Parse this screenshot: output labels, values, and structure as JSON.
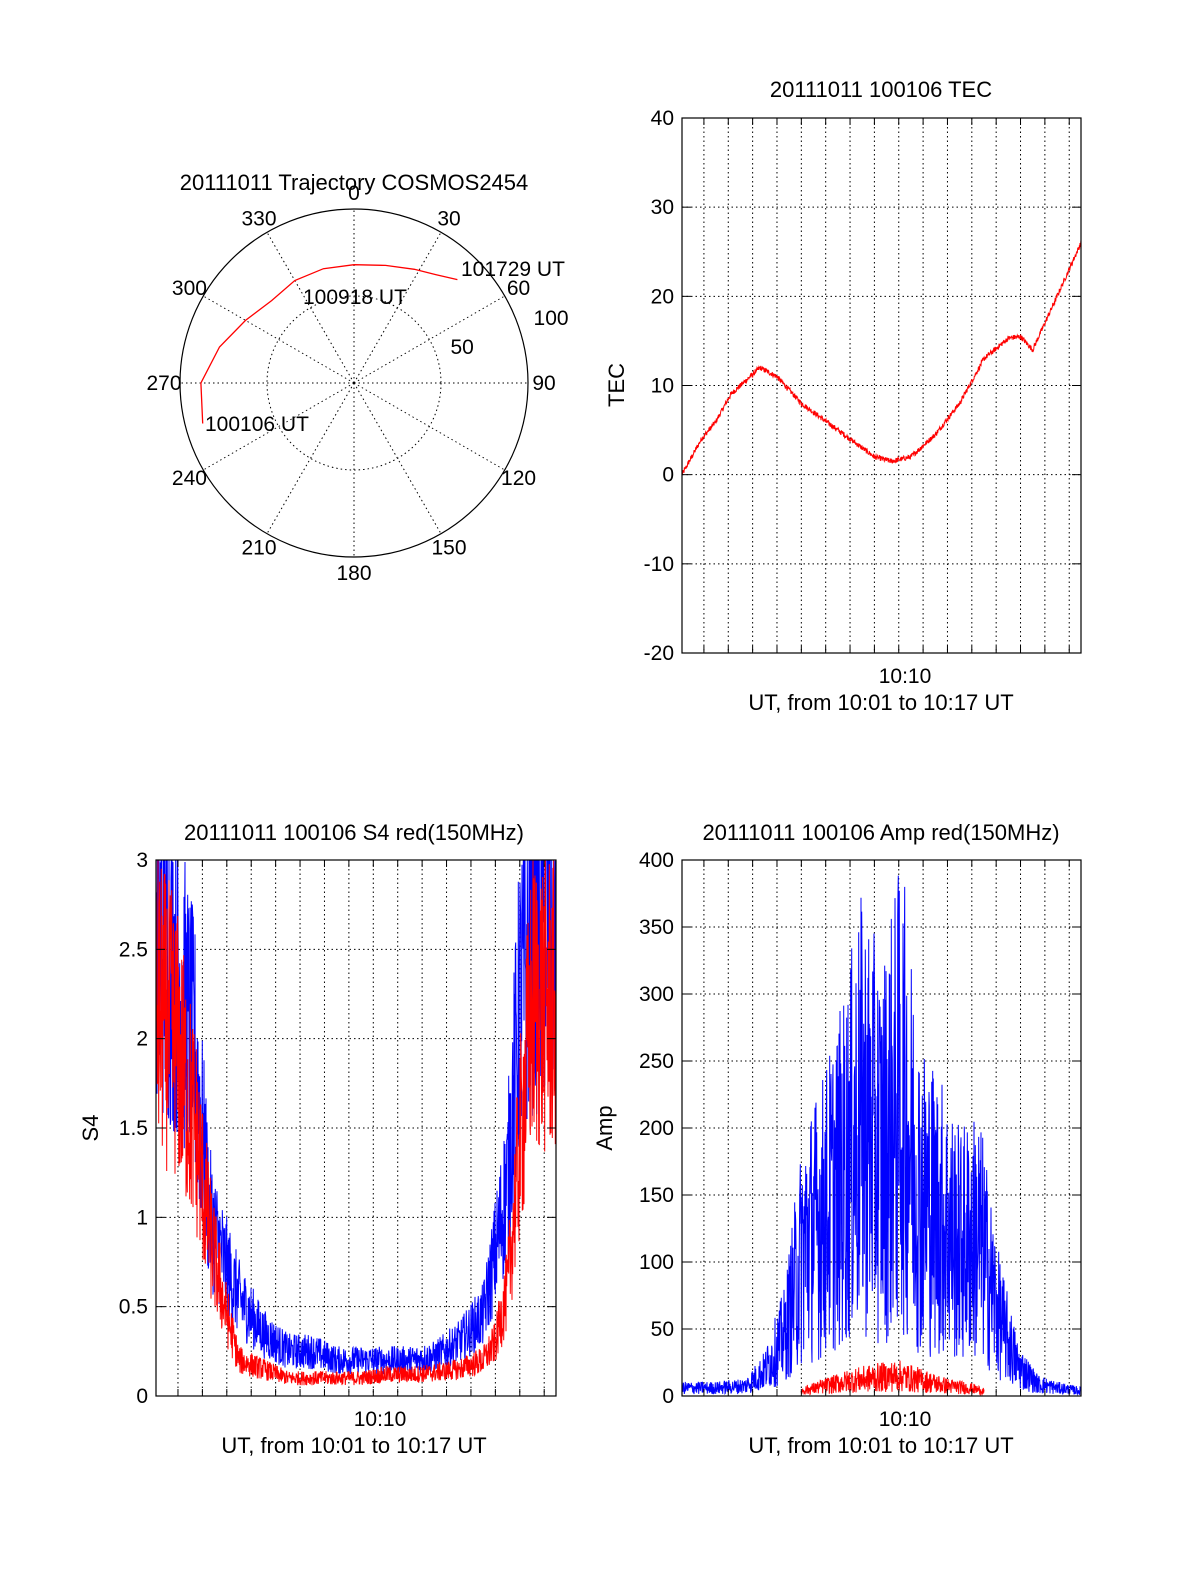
{
  "colors": {
    "red": "#ff0000",
    "blue": "#0000ff",
    "axis": "#000000",
    "background": "#ffffff"
  },
  "chart_data": [
    {
      "type": "polar",
      "title": "20111011 Trajectory COSMOS2454",
      "azimuth_ticks": [
        "0",
        "30",
        "60",
        "90",
        "120",
        "150",
        "180",
        "210",
        "240",
        "270",
        "300",
        "330"
      ],
      "radial_ticks": [
        "50",
        "100"
      ],
      "rlim": [
        0,
        100
      ],
      "series": [
        {
          "color": "#ff0000",
          "points": [
            {
              "az": 255,
              "r": 90
            },
            {
              "az": 270,
              "r": 88
            },
            {
              "az": 285,
              "r": 80
            },
            {
              "az": 300,
              "r": 72
            },
            {
              "az": 315,
              "r": 67
            },
            {
              "az": 330,
              "r": 68
            },
            {
              "az": 345,
              "r": 68
            },
            {
              "az": 0,
              "r": 68
            },
            {
              "az": 15,
              "r": 70
            },
            {
              "az": 28,
              "r": 74
            },
            {
              "az": 37,
              "r": 78
            },
            {
              "az": 45,
              "r": 84
            }
          ]
        }
      ],
      "annotations": [
        "100106 UT",
        "100918 UT",
        "101729 UT"
      ]
    },
    {
      "type": "line",
      "title": "20111011 100106 TEC",
      "xlabel": "UT, from 10:01 to 10:17 UT",
      "ylabel": "TEC",
      "x_tick_labels": [
        "10:10"
      ],
      "xlim": [
        "10:01:06",
        "10:17:29"
      ],
      "ylim": [
        -20,
        40
      ],
      "y_ticks": [
        -20,
        -10,
        0,
        10,
        20,
        30,
        40
      ],
      "grid": true,
      "series": [
        {
          "color": "#ff0000",
          "x": [
            "10:01:06",
            "10:01:54",
            "10:02:30",
            "10:03:06",
            "10:03:30",
            "10:03:54",
            "10:04:18",
            "10:05:00",
            "10:06:00",
            "10:07:00",
            "10:08:00",
            "10:09:00",
            "10:09:42",
            "10:10:30",
            "10:11:30",
            "10:12:30",
            "10:13:30",
            "10:14:30",
            "10:15:00",
            "10:15:30",
            "10:16:00",
            "10:16:30",
            "10:17:29"
          ],
          "y": [
            0,
            4,
            6,
            9,
            10,
            11,
            12,
            11,
            8,
            6,
            4,
            2,
            1.5,
            2,
            4.5,
            8,
            13,
            15.3,
            15.5,
            14,
            17,
            20,
            26
          ]
        }
      ]
    },
    {
      "type": "line",
      "title": "20111011 100106 S4 red(150MHz)",
      "xlabel": "UT, from 10:01 to 10:17 UT",
      "ylabel": "S4",
      "x_tick_labels": [
        "10:10"
      ],
      "xlim": [
        "10:01:06",
        "10:17:29"
      ],
      "ylim": [
        0,
        3
      ],
      "y_ticks": [
        0,
        0.5,
        1,
        1.5,
        2,
        2.5,
        3
      ],
      "grid": true,
      "series": [
        {
          "color": "#0000ff",
          "x": [
            "10:01:06",
            "10:01:54",
            "10:02:42",
            "10:03:18",
            "10:03:54",
            "10:04:30",
            "10:05:30",
            "10:06:30",
            "10:07:30",
            "10:08:30",
            "10:09:30",
            "10:10:30",
            "10:11:30",
            "10:12:30",
            "10:13:30",
            "10:14:30",
            "10:15:00",
            "10:15:30",
            "10:16:00",
            "10:16:30",
            "10:17:29"
          ],
          "y": [
            2.6,
            2.4,
            1.9,
            1.0,
            0.75,
            0.55,
            0.35,
            0.25,
            0.25,
            0.2,
            0.2,
            0.2,
            0.2,
            0.22,
            0.3,
            0.45,
            0.8,
            1.2,
            2.2,
            2.6,
            2.6
          ]
        },
        {
          "color": "#ff0000",
          "x": [
            "10:01:06",
            "10:01:54",
            "10:02:42",
            "10:03:18",
            "10:03:54",
            "10:04:30",
            "10:05:30",
            "10:06:30",
            "10:07:30",
            "10:08:30",
            "10:09:30",
            "10:10:30",
            "10:11:30",
            "10:12:30",
            "10:13:30",
            "10:14:30",
            "10:15:00",
            "10:15:30",
            "10:16:00",
            "10:16:30",
            "10:17:29"
          ],
          "y": [
            2.2,
            2.0,
            1.5,
            0.9,
            0.5,
            0.2,
            0.15,
            0.1,
            0.1,
            0.1,
            0.1,
            0.12,
            0.12,
            0.13,
            0.15,
            0.2,
            0.3,
            0.6,
            1.4,
            2.2,
            2.2
          ]
        }
      ]
    },
    {
      "type": "line",
      "title": "20111011 100106 Amp red(150MHz)",
      "xlabel": "UT, from 10:01 to 10:17 UT",
      "ylabel": "Amp",
      "x_tick_labels": [
        "10:10"
      ],
      "xlim": [
        "10:01:06",
        "10:17:29"
      ],
      "ylim": [
        0,
        400
      ],
      "y_ticks": [
        0,
        50,
        100,
        150,
        200,
        250,
        300,
        350,
        400
      ],
      "grid": true,
      "series": [
        {
          "color": "#0000ff",
          "x": [
            "10:01:06",
            "10:02:30",
            "10:03:42",
            "10:04:30",
            "10:05:18",
            "10:06:06",
            "10:06:54",
            "10:07:42",
            "10:08:30",
            "10:09:18",
            "10:10:06",
            "10:10:54",
            "10:11:42",
            "10:12:30",
            "10:13:18",
            "10:14:06",
            "10:14:54",
            "10:15:42",
            "10:16:30",
            "10:17:29"
          ],
          "y": [
            8,
            8,
            10,
            25,
            60,
            150,
            180,
            220,
            280,
            240,
            300,
            200,
            180,
            150,
            160,
            80,
            30,
            12,
            8,
            5
          ]
        },
        {
          "color": "#ff0000",
          "x": [
            "10:06:00",
            "10:07:00",
            "10:08:00",
            "10:09:00",
            "10:10:00",
            "10:11:00",
            "10:12:00",
            "10:12:48",
            "10:13:30"
          ],
          "y": [
            5,
            10,
            15,
            18,
            20,
            15,
            10,
            8,
            5
          ]
        }
      ]
    }
  ]
}
